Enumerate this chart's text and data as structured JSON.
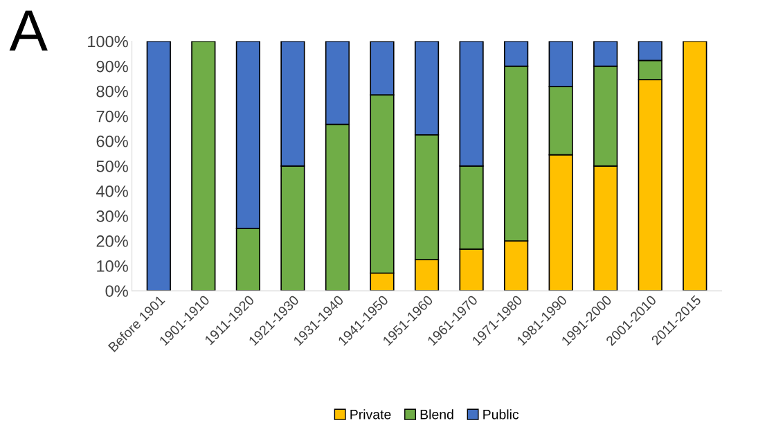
{
  "chart_data": {
    "type": "bar",
    "title": "A",
    "stacked": true,
    "categories": [
      "Before 1901",
      "1901-1910",
      "1911-1920",
      "1921-1930",
      "1931-1940",
      "1941-1950",
      "1951-1960",
      "1961-1970",
      "1971-1980",
      "1981-1990",
      "1991-2000",
      "2001-2010",
      "2011-2015"
    ],
    "series": [
      {
        "name": "Private",
        "color": "#ffc000",
        "values": [
          0,
          0,
          0,
          0,
          0,
          7.1,
          12.5,
          16.7,
          20,
          54.5,
          50,
          84.6,
          100
        ]
      },
      {
        "name": "Blend",
        "color": "#70ad47",
        "values": [
          0,
          100,
          25,
          50,
          66.7,
          71.4,
          50,
          33.3,
          70,
          27.3,
          40,
          7.7,
          0
        ]
      },
      {
        "name": "Public",
        "color": "#4472c4",
        "values": [
          100,
          0,
          75,
          50,
          33.3,
          21.4,
          37.5,
          50,
          10,
          18.2,
          10,
          7.7,
          0
        ]
      }
    ],
    "ylim": [
      0,
      100
    ],
    "yticks": [
      {
        "value": 0,
        "label": "0%"
      },
      {
        "value": 10,
        "label": "10%"
      },
      {
        "value": 20,
        "label": "20%"
      },
      {
        "value": 30,
        "label": "30%"
      },
      {
        "value": 40,
        "label": "40%"
      },
      {
        "value": 50,
        "label": "50%"
      },
      {
        "value": 60,
        "label": "60%"
      },
      {
        "value": 70,
        "label": "70%"
      },
      {
        "value": 80,
        "label": "80%"
      },
      {
        "value": 90,
        "label": "90%"
      },
      {
        "value": 100,
        "label": "100%"
      }
    ],
    "grid": false,
    "legend": "bottom"
  }
}
